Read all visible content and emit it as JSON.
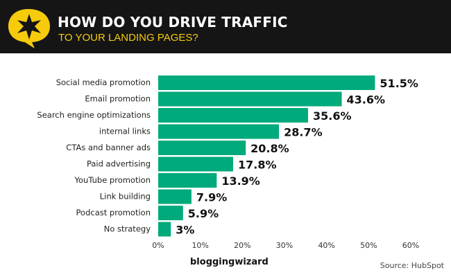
{
  "header": {
    "title": "HOW DO YOU DRIVE TRAFFIC",
    "subtitle": "TO YOUR LANDING PAGES?",
    "logo_icon": "star-speech-bubble-icon",
    "accent": "#f5cb0c"
  },
  "chart_data": {
    "type": "bar",
    "orientation": "horizontal",
    "categories": [
      "Social media promotion",
      "Email promotion",
      "Search engine optimizations",
      "internal links",
      "CTAs and banner ads",
      "Paid advertising",
      "YouTube promotion",
      "Link building",
      "Podcast promotion",
      "No strategy"
    ],
    "values": [
      51.5,
      43.6,
      35.6,
      28.7,
      20.8,
      17.8,
      13.9,
      7.9,
      5.9,
      3
    ],
    "value_labels": [
      "51.5%",
      "43.6%",
      "35.6%",
      "28.7%",
      "20.8%",
      "17.8%",
      "13.9%",
      "7.9%",
      "5.9%",
      "3%"
    ],
    "xlim": [
      0,
      60
    ],
    "xticks": [
      "0%",
      "10%",
      "20%",
      "30%",
      "40%",
      "50%",
      "60%"
    ],
    "bar_color": "#00aa7b",
    "grid": false
  },
  "footer": {
    "brand": "bloggingwizard",
    "source": "Source: HubSpot"
  }
}
